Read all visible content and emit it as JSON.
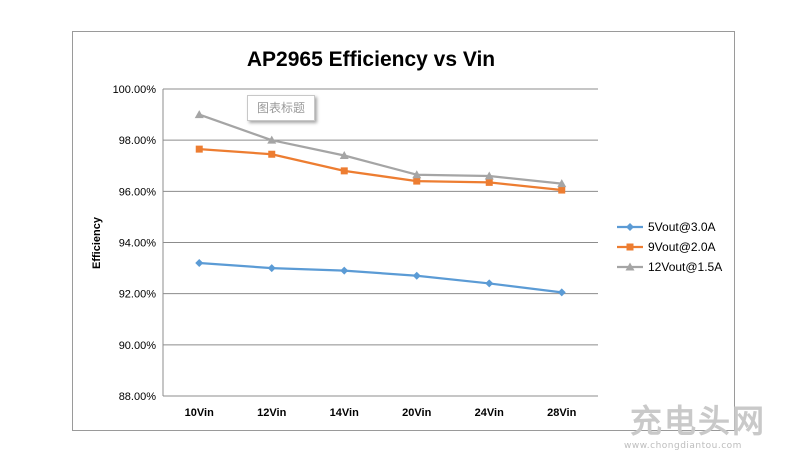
{
  "chart_data": {
    "type": "line",
    "title": "AP2965 Efficiency vs Vin",
    "xlabel": "",
    "ylabel": "Efficiency",
    "categories": [
      "10Vin",
      "12Vin",
      "14Vin",
      "20Vin",
      "24Vin",
      "28Vin"
    ],
    "ylim": [
      88,
      100
    ],
    "ytick_step": 2,
    "ytick_labels": [
      "88.00%",
      "90.00%",
      "92.00%",
      "94.00%",
      "96.00%",
      "98.00%",
      "100.00%"
    ],
    "grid": true,
    "legend_position": "right",
    "series": [
      {
        "name": "5Vout@3.0A",
        "color": "#5b9bd5",
        "marker": "diamond",
        "values": [
          93.2,
          93.0,
          92.9,
          92.7,
          92.4,
          92.05
        ]
      },
      {
        "name": "9Vout@2.0A",
        "color": "#ed7d31",
        "marker": "square",
        "values": [
          97.65,
          97.45,
          96.8,
          96.4,
          96.35,
          96.05
        ]
      },
      {
        "name": "12Vout@1.5A",
        "color": "#a5a5a5",
        "marker": "triangle",
        "values": [
          99.0,
          98.0,
          97.4,
          96.65,
          96.6,
          96.3
        ]
      }
    ]
  },
  "title_placeholder": "图表标题",
  "watermark": {
    "logo": "充电头网",
    "url": "www.chongdiantou.com"
  }
}
